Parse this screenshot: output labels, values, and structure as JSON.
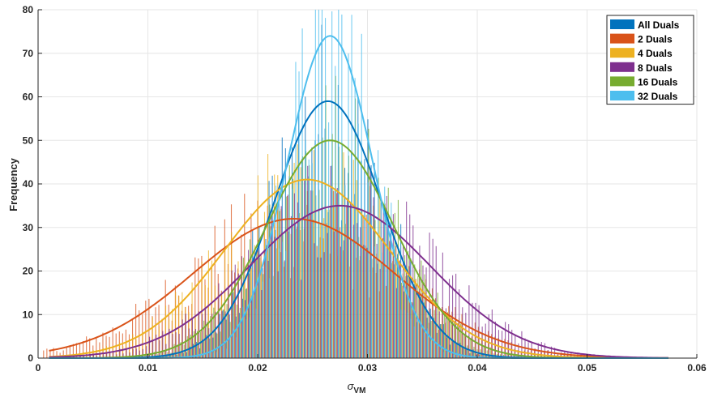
{
  "chart_data": {
    "type": "bar",
    "title": "",
    "xlabel_main": "σ",
    "xlabel_sub": "VM",
    "ylabel": "Frequency",
    "xlim": [
      0,
      0.06
    ],
    "ylim": [
      0,
      80
    ],
    "x_ticks": [
      0,
      0.01,
      0.02,
      0.03,
      0.04,
      0.05,
      0.06
    ],
    "x_tick_labels": [
      "0",
      "0.01",
      "0.02",
      "0.03",
      "0.04",
      "0.05",
      "0.06"
    ],
    "y_ticks": [
      0,
      10,
      20,
      30,
      40,
      50,
      60,
      70,
      80
    ],
    "y_tick_labels": [
      "0",
      "10",
      "20",
      "30",
      "40",
      "50",
      "60",
      "70",
      "80"
    ],
    "grid": true,
    "legend_position": "top-right",
    "series": [
      {
        "name": "All Duals",
        "color": "#0072BD",
        "fit": {
          "mean": 0.0264,
          "sd": 0.0049,
          "peak": 59
        }
      },
      {
        "name": "2 Duals",
        "color": "#D95319",
        "fit": {
          "mean": 0.0233,
          "sd": 0.0092,
          "peak": 32
        }
      },
      {
        "name": "4 Duals",
        "color": "#EDB120",
        "fit": {
          "mean": 0.0245,
          "sd": 0.0075,
          "peak": 41
        }
      },
      {
        "name": "8 Duals",
        "color": "#7E2F8E",
        "fit": {
          "mean": 0.0275,
          "sd": 0.0082,
          "peak": 35
        }
      },
      {
        "name": "16 Duals",
        "color": "#77AC30",
        "fit": {
          "mean": 0.0266,
          "sd": 0.0058,
          "peak": 50
        }
      },
      {
        "name": "32 Duals",
        "color": "#4DBEEE",
        "fit": {
          "mean": 0.0266,
          "sd": 0.0039,
          "peak": 74
        }
      }
    ]
  }
}
